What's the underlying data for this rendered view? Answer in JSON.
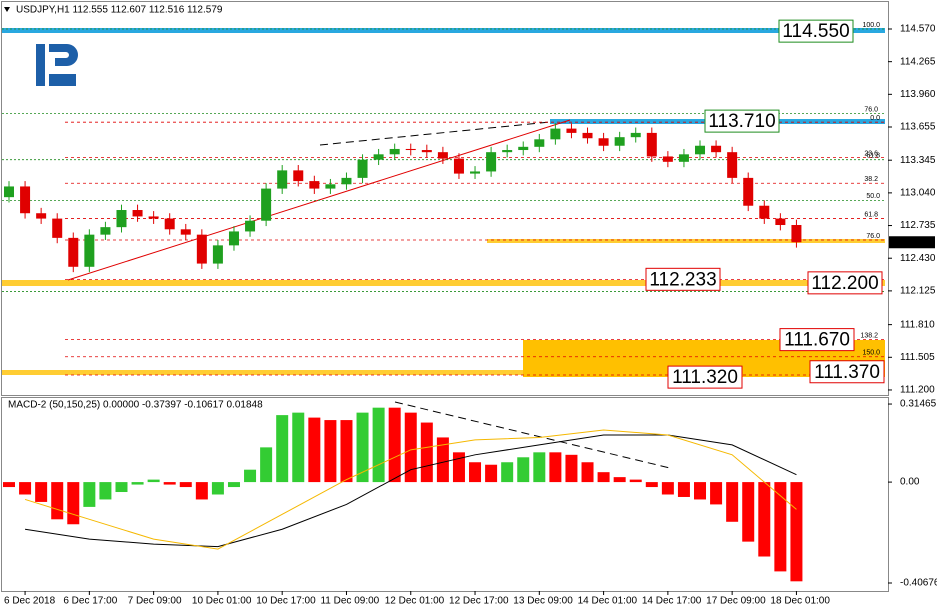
{
  "chart_data": [
    {
      "type": "candlestick",
      "title": "USDJPY,H1  112.555 112.607 112.516 112.579",
      "open": [
        113.0,
        113.1,
        112.85,
        112.8,
        112.62,
        112.35,
        112.65,
        112.72,
        112.88,
        112.82,
        112.8,
        112.7,
        112.65,
        112.38,
        112.55,
        112.68,
        112.78,
        113.08,
        113.25,
        113.15,
        113.08,
        113.12,
        113.18,
        113.35,
        113.4,
        113.45,
        113.44,
        113.42,
        113.36,
        113.22,
        113.24,
        113.42,
        113.44,
        113.47,
        113.54,
        113.64,
        113.6,
        113.55,
        113.48,
        113.56,
        113.6,
        113.38,
        113.33,
        113.4,
        113.48,
        113.42,
        113.18,
        112.92,
        112.8,
        112.74
      ],
      "high": [
        113.15,
        113.15,
        112.9,
        112.85,
        112.67,
        112.7,
        112.77,
        112.93,
        112.93,
        112.87,
        112.85,
        112.75,
        112.7,
        112.6,
        112.73,
        112.83,
        113.13,
        113.3,
        113.3,
        113.2,
        113.17,
        113.23,
        113.4,
        113.45,
        113.5,
        113.5,
        113.49,
        113.47,
        113.41,
        113.29,
        113.47,
        113.49,
        113.52,
        113.59,
        113.69,
        113.69,
        113.65,
        113.6,
        113.61,
        113.65,
        113.65,
        113.43,
        113.45,
        113.53,
        113.53,
        113.47,
        113.23,
        112.97,
        112.85,
        112.79
      ],
      "low": [
        112.95,
        112.8,
        112.75,
        112.57,
        112.3,
        112.3,
        112.6,
        112.67,
        112.77,
        112.75,
        112.65,
        112.6,
        112.33,
        112.33,
        112.5,
        112.63,
        112.73,
        113.03,
        113.1,
        113.03,
        113.03,
        113.07,
        113.13,
        113.3,
        113.35,
        113.39,
        113.37,
        113.31,
        113.17,
        113.17,
        113.19,
        113.37,
        113.39,
        113.42,
        113.49,
        113.55,
        113.5,
        113.43,
        113.43,
        113.51,
        113.33,
        113.28,
        113.28,
        113.35,
        113.37,
        113.13,
        112.87,
        112.75,
        112.69,
        112.529
      ],
      "close": [
        113.1,
        112.85,
        112.8,
        112.62,
        112.35,
        112.65,
        112.72,
        112.88,
        112.82,
        112.8,
        112.7,
        112.65,
        112.38,
        112.55,
        112.68,
        112.78,
        113.08,
        113.25,
        113.15,
        113.08,
        113.12,
        113.18,
        113.35,
        113.4,
        113.45,
        113.44,
        113.42,
        113.36,
        113.22,
        113.24,
        113.42,
        113.44,
        113.47,
        113.54,
        113.64,
        113.6,
        113.55,
        113.48,
        113.56,
        113.6,
        113.38,
        113.33,
        113.4,
        113.48,
        113.42,
        113.18,
        112.92,
        112.8,
        112.74,
        112.579
      ],
      "up_color": "#1fa01f",
      "down_color": "#e00000",
      "ylim": [
        111.153,
        114.822
      ],
      "yticks": [
        {
          "value": 114.57,
          "label": "114.570"
        },
        114.265,
        {
          "value": 113.96,
          "label": "113.960"
        },
        113.655,
        113.345,
        {
          "value": 113.04,
          "label": "113.040"
        },
        112.735,
        {
          "value": 112.43,
          "label": "112.430"
        },
        112.125,
        {
          "value": 111.81,
          "label": "111.810"
        },
        111.505,
        {
          "value": 111.2,
          "label": "111.200"
        }
      ],
      "levels": [
        {
          "value": 114.55,
          "label": "114.550",
          "color": "#1e8c1e"
        },
        {
          "value": 113.71,
          "label": "113.710",
          "color": "#1e8c1e"
        },
        {
          "value": 112.233,
          "label": "112.233",
          "color": "#e00000"
        },
        {
          "value": 112.2,
          "label": "112.200",
          "color": "#e00000"
        },
        {
          "value": 111.67,
          "label": "111.670",
          "color": "#e00000"
        },
        {
          "value": 111.37,
          "label": "111.370",
          "color": "#e00000"
        },
        {
          "value": 111.32,
          "label": "111.320",
          "color": "#e00000"
        }
      ],
      "fib_levels": [
        {
          "value": 114.57,
          "label": "100.0",
          "color": "#1e8c1e"
        },
        {
          "value": 113.78,
          "label": "76.0",
          "color": "#1e8c1e"
        },
        {
          "value": 113.7,
          "label": "0.0",
          "color": "#e00000"
        },
        {
          "value": 113.37,
          "label": "23.6",
          "color": "#e00000"
        },
        {
          "value": 113.35,
          "label": "61.8",
          "color": "#1e8c1e"
        },
        {
          "value": 113.13,
          "label": "38.2",
          "color": "#e00000"
        },
        {
          "value": 112.97,
          "label": "50.0",
          "color": "#1e8c1e"
        },
        {
          "value": 112.8,
          "label": "61.8",
          "color": "#e00000"
        },
        {
          "value": 112.6,
          "label": "76.0",
          "color": "#e00000"
        },
        {
          "value": 112.23,
          "label": "100.0",
          "color": "#e00000"
        },
        {
          "value": 112.12,
          "label": "0.0",
          "color": "#1e8c1e"
        },
        {
          "value": 111.67,
          "label": "138.2",
          "color": "#e00000"
        },
        {
          "value": 111.51,
          "label": "150.0",
          "color": "#e00000"
        },
        {
          "value": 111.34,
          "label": "161.8",
          "color": "#e00000"
        }
      ],
      "current_color": "#000000"
    },
    {
      "type": "macd",
      "title": "MACD-2 (50,150,25) 0.00000 -0.37397 -0.10617 0.01848",
      "categories": [
        "6 Dec 2018",
        "6 Dec 17:00",
        "7 Dec 09:00",
        "10 Dec 01:00",
        "10 Dec 17:00",
        "11 Dec 09:00",
        "12 Dec 01:00",
        "12 Dec 17:00",
        "13 Dec 09:00",
        "14 Dec 01:00",
        "14 Dec 17:00",
        "17 Dec 09:00",
        "18 Dec 01:00"
      ],
      "histogram": {
        "values": [
          -0.02,
          -0.05,
          -0.08,
          -0.15,
          -0.17,
          -0.1,
          -0.07,
          -0.04,
          -0.01,
          0.01,
          -0.01,
          -0.02,
          -0.07,
          -0.05,
          -0.02,
          0.05,
          0.14,
          0.27,
          0.28,
          0.26,
          0.25,
          0.25,
          0.28,
          0.3,
          0.3,
          0.28,
          0.24,
          0.18,
          0.12,
          0.08,
          0.07,
          0.08,
          0.1,
          0.12,
          0.12,
          0.11,
          0.08,
          0.04,
          0.02,
          0.01,
          -0.02,
          -0.05,
          -0.06,
          -0.07,
          -0.09,
          -0.16,
          -0.24,
          -0.3,
          -0.36,
          -0.4
        ],
        "up_color": "#33cc33",
        "down_color": "#ff0000"
      },
      "series": [
        {
          "color": "#000000",
          "values": [
            -0.19,
            -0.23,
            -0.25,
            -0.26,
            -0.19,
            -0.09,
            0.05,
            0.11,
            0.15,
            0.19,
            0.19,
            0.15,
            0.03
          ]
        },
        {
          "color": "#f5b800",
          "values": [
            -0.07,
            -0.15,
            -0.23,
            -0.27,
            -0.13,
            0.01,
            0.13,
            0.17,
            0.18,
            0.21,
            0.19,
            0.11,
            -0.11
          ]
        }
      ],
      "ylim": [
        -0.435,
        0.339
      ],
      "yticks": [
        0.31465,
        {
          "value": 0,
          "label": "0.00"
        },
        -0.40676
      ]
    }
  ]
}
